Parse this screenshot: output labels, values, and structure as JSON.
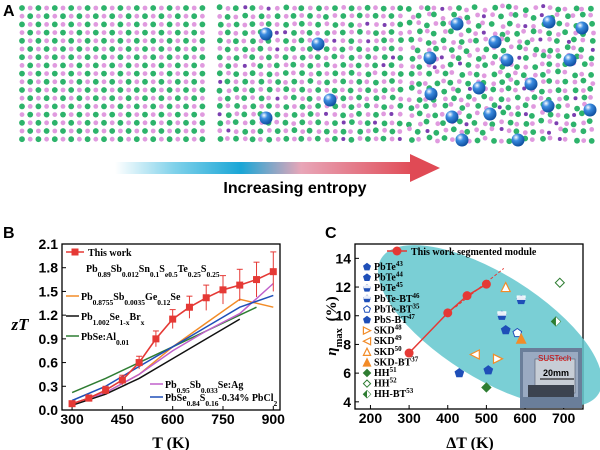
{
  "panel_a": {
    "label": "A",
    "arrow_text": "Increasing entropy",
    "colors": {
      "green": "#2db36b",
      "pink": "#e09adf",
      "blue": "#1e6fc8",
      "purple": "#7b3fb0",
      "red": "#d62828"
    }
  },
  "panel_b": {
    "label": "B",
    "formula_main": {
      "parts": [
        {
          "t": "Pb",
          "s": "normal"
        },
        {
          "t": "0.89",
          "s": "sub"
        },
        {
          "t": "Sb",
          "s": "normal"
        },
        {
          "t": "0.012",
          "s": "sub"
        },
        {
          "t": "Sn",
          "s": "normal"
        },
        {
          "t": "0.1",
          "s": "sub"
        },
        {
          "t": "S",
          "s": "normal"
        },
        {
          "t": "e0.5",
          "s": "sub"
        },
        {
          "t": "Te",
          "s": "normal"
        },
        {
          "t": "0.25",
          "s": "sub"
        },
        {
          "t": "S",
          "s": "normal"
        },
        {
          "t": "0.25",
          "s": "sub"
        }
      ]
    }
  },
  "panel_c": {
    "label": "C"
  },
  "chart_data": [
    {
      "type": "line",
      "title": "",
      "xlabel": "T (K)",
      "ylabel": "zT",
      "xlim": [
        270,
        920
      ],
      "ylim": [
        0,
        2.1
      ],
      "xticks": [
        300,
        450,
        600,
        750,
        900
      ],
      "yticks": [
        0,
        0.3,
        0.6,
        0.9,
        1.2,
        1.5,
        1.8,
        2.1
      ],
      "ytick_labels": [
        "0.0",
        "0.3",
        "0.6",
        "0.9",
        "1.2",
        "1.5",
        "1.8",
        "2.1"
      ],
      "legend_this_work": "This work",
      "series": [
        {
          "name": "This work",
          "color": "#e53935",
          "marker": "square",
          "x": [
            300,
            350,
            400,
            450,
            500,
            550,
            600,
            650,
            700,
            750,
            800,
            850,
            900
          ],
          "y": [
            0.08,
            0.15,
            0.25,
            0.38,
            0.6,
            0.9,
            1.15,
            1.3,
            1.42,
            1.52,
            1.58,
            1.65,
            1.75
          ],
          "err": [
            0.03,
            0.04,
            0.05,
            0.06,
            0.08,
            0.1,
            0.12,
            0.14,
            0.16,
            0.18,
            0.2,
            0.22,
            0.25
          ]
        },
        {
          "name": "Pb0.8755Sb0.0035Ge0.12Se",
          "color": "#f28c28",
          "x": [
            300,
            400,
            500,
            600,
            700,
            800,
            900
          ],
          "y": [
            0.08,
            0.22,
            0.45,
            0.8,
            1.1,
            1.4,
            1.3
          ]
        },
        {
          "name": "Pb1.002Se1-xBrx",
          "color": "#111111",
          "x": [
            300,
            400,
            500,
            600,
            700,
            800
          ],
          "y": [
            0.06,
            0.2,
            0.4,
            0.65,
            0.9,
            1.15
          ]
        },
        {
          "name": "PbSe:Al0.01",
          "color": "#2e7d32",
          "x": [
            300,
            400,
            500,
            600,
            700,
            800,
            850
          ],
          "y": [
            0.22,
            0.4,
            0.6,
            0.8,
            1.0,
            1.2,
            1.3
          ]
        },
        {
          "name": "Pb0.95Sb0.033Se:Ag",
          "color": "#c061cb",
          "x": [
            300,
            400,
            500,
            600,
            700,
            800,
            900
          ],
          "y": [
            0.08,
            0.22,
            0.45,
            0.75,
            1.0,
            1.22,
            1.6
          ]
        },
        {
          "name": "PbSe0.84S0.16-0.34% PbCl2",
          "color": "#1f4fb8",
          "x": [
            300,
            400,
            500,
            600,
            700,
            800,
            900
          ],
          "y": [
            0.12,
            0.3,
            0.55,
            0.8,
            1.05,
            1.3,
            1.45
          ]
        }
      ],
      "legend_labels": [
        {
          "series": 1,
          "parts": [
            {
              "t": "Pb",
              "s": "normal"
            },
            {
              "t": "0.8755",
              "s": "sub"
            },
            {
              "t": "Sb",
              "s": "normal"
            },
            {
              "t": "0.0035",
              "s": "sub"
            },
            {
              "t": "Ge",
              "s": "normal"
            },
            {
              "t": "0.12",
              "s": "sub"
            },
            {
              "t": "Se",
              "s": "normal"
            }
          ]
        },
        {
          "series": 2,
          "parts": [
            {
              "t": "Pb",
              "s": "normal"
            },
            {
              "t": "1.002",
              "s": "sub"
            },
            {
              "t": "Se",
              "s": "normal"
            },
            {
              "t": "1-x",
              "s": "sub"
            },
            {
              "t": "Br",
              "s": "normal"
            },
            {
              "t": "x",
              "s": "sub"
            }
          ]
        },
        {
          "series": 3,
          "parts": [
            {
              "t": "PbSe:Al",
              "s": "normal"
            },
            {
              "t": "0.01",
              "s": "sub"
            }
          ]
        },
        {
          "series": 4,
          "parts": [
            {
              "t": "Pb",
              "s": "normal"
            },
            {
              "t": "0.95",
              "s": "sub"
            },
            {
              "t": "Sb",
              "s": "normal"
            },
            {
              "t": "0.033",
              "s": "sub"
            },
            {
              "t": "Se:Ag",
              "s": "normal"
            }
          ]
        },
        {
          "series": 5,
          "parts": [
            {
              "t": "PbSe",
              "s": "normal"
            },
            {
              "t": "0.84",
              "s": "sub"
            },
            {
              "t": "S",
              "s": "normal"
            },
            {
              "t": "0.16",
              "s": "sub"
            },
            {
              "t": "-0.34% PbCl",
              "s": "normal"
            },
            {
              "t": "2",
              "s": "sub"
            }
          ]
        }
      ]
    },
    {
      "type": "scatter",
      "title": "",
      "xlabel": "ΔT (K)",
      "ylabel": "η_max (%)",
      "ylabel_main": "η",
      "ylabel_sub": "max",
      "ylabel_unit": "(%)",
      "xlim": [
        160,
        750
      ],
      "ylim": [
        3.5,
        15
      ],
      "xticks": [
        200,
        300,
        400,
        500,
        600,
        700
      ],
      "yticks": [
        4,
        6,
        8,
        10,
        12,
        14
      ],
      "inset_text": [
        "SUSTech",
        "20mm"
      ],
      "series": [
        {
          "name": "This work segmented module",
          "color": "#e53935",
          "marker": "circle",
          "x": [
            300,
            400,
            450,
            500
          ],
          "y": [
            7.4,
            10.2,
            11.4,
            12.2
          ]
        }
      ],
      "references": [
        {
          "label": "PbTe",
          "ref": "43",
          "marker": "pentagon-filled",
          "color": "#1f4fb8",
          "x": 430,
          "y": 6.0
        },
        {
          "label": "PbTe",
          "ref": "44",
          "marker": "pentagon-filled",
          "color": "#1f4fb8",
          "x": 505,
          "y": 6.2
        },
        {
          "label": "PbTe",
          "ref": "45",
          "marker": "pentagon-half",
          "color": "#1f4fb8",
          "x": 540,
          "y": 10.0
        },
        {
          "label": "PbTe-BT",
          "ref": "46",
          "marker": "pentagon-half",
          "color": "#1f4fb8",
          "x": 590,
          "y": 11.1
        },
        {
          "label": "PbTe-BT",
          "ref": "35",
          "marker": "pentagon-open",
          "color": "#1f4fb8",
          "x": 580,
          "y": 8.8
        },
        {
          "label": "PbS-BT",
          "ref": "47",
          "marker": "pentagon-filled",
          "color": "#1f4fb8",
          "x": 550,
          "y": 9.0
        },
        {
          "label": "SKD",
          "ref": "48",
          "marker": "triangle-right",
          "color": "#f28c28",
          "x": 530,
          "y": 7.0
        },
        {
          "label": "SKD",
          "ref": "49",
          "marker": "triangle-left",
          "color": "#f28c28",
          "x": 470,
          "y": 7.3
        },
        {
          "label": "SKD",
          "ref": "50",
          "marker": "triangle-up",
          "color": "#f28c28",
          "x": 550,
          "y": 12.0
        },
        {
          "label": "SKD-BT",
          "ref": "37",
          "marker": "triangle-up-filled",
          "color": "#f28c28",
          "x": 590,
          "y": 8.4
        },
        {
          "label": "HH",
          "ref": "51",
          "marker": "diamond-filled",
          "color": "#2e7d32",
          "x": 500,
          "y": 5.0
        },
        {
          "label": "HH",
          "ref": "52",
          "marker": "diamond-open",
          "color": "#2e7d32",
          "x": 690,
          "y": 12.3
        },
        {
          "label": "HH-BT",
          "ref": "53",
          "marker": "diamond-half",
          "color": "#2e7d32",
          "x": 680,
          "y": 9.6
        }
      ]
    }
  ]
}
